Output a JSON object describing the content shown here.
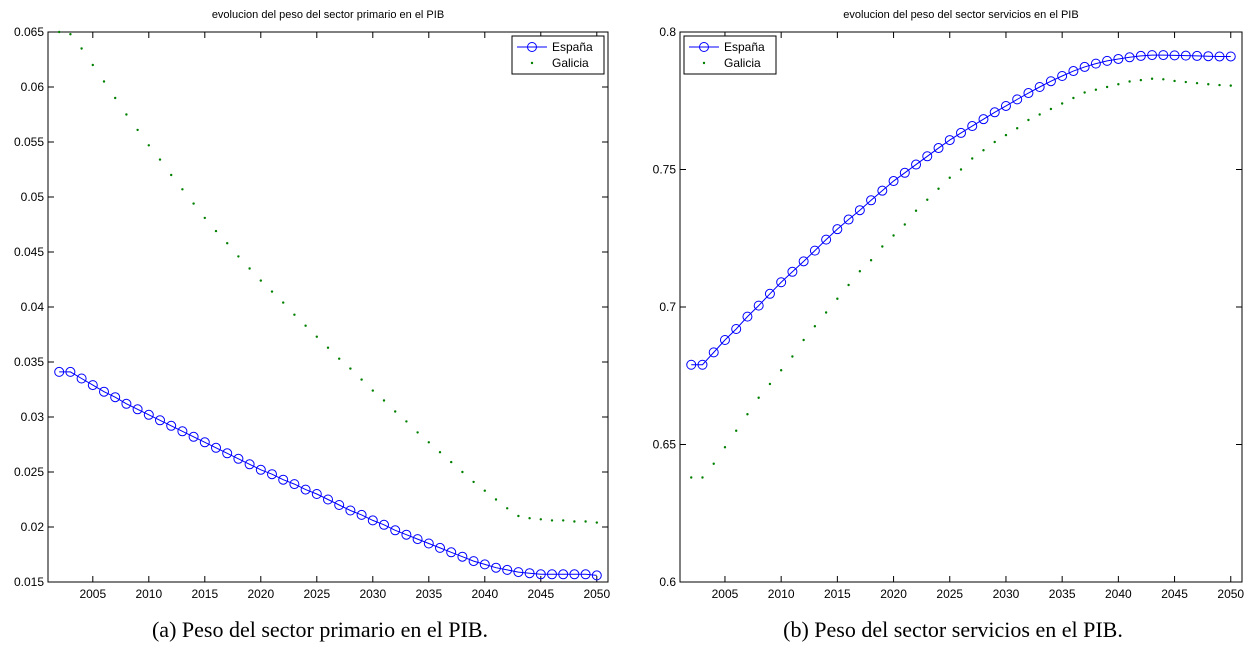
{
  "chart_data": [
    {
      "type": "line",
      "title": "evolucion del peso del sector primario en el PIB",
      "caption": "(a) Peso del sector primario en el PIB.",
      "x": [
        2002,
        2003,
        2004,
        2005,
        2006,
        2007,
        2008,
        2009,
        2010,
        2011,
        2012,
        2013,
        2014,
        2015,
        2016,
        2017,
        2018,
        2019,
        2020,
        2021,
        2022,
        2023,
        2024,
        2025,
        2026,
        2027,
        2028,
        2029,
        2030,
        2031,
        2032,
        2033,
        2034,
        2035,
        2036,
        2037,
        2038,
        2039,
        2040,
        2041,
        2042,
        2043,
        2044,
        2045,
        2046,
        2047,
        2048,
        2049,
        2050
      ],
      "xlim": [
        2001,
        2051
      ],
      "xticks": [
        2005,
        2010,
        2015,
        2020,
        2025,
        2030,
        2035,
        2040,
        2045,
        2050
      ],
      "ylim": [
        0.015,
        0.065
      ],
      "yticks": [
        0.015,
        0.02,
        0.025,
        0.03,
        0.035,
        0.04,
        0.045,
        0.05,
        0.055,
        0.06,
        0.065
      ],
      "legend": "upper right",
      "series": [
        {
          "name": "España",
          "color": "#0000ff",
          "style": "line-circle",
          "values": [
            0.0341,
            0.0341,
            0.0335,
            0.0329,
            0.0323,
            0.0318,
            0.0312,
            0.0307,
            0.0302,
            0.0297,
            0.0292,
            0.0287,
            0.0282,
            0.0277,
            0.0272,
            0.0267,
            0.0262,
            0.0257,
            0.0252,
            0.0248,
            0.0243,
            0.0239,
            0.0234,
            0.023,
            0.0225,
            0.022,
            0.0215,
            0.0211,
            0.0206,
            0.0202,
            0.0197,
            0.0193,
            0.0189,
            0.0185,
            0.0181,
            0.0177,
            0.0173,
            0.0169,
            0.0166,
            0.0163,
            0.0161,
            0.0159,
            0.0158,
            0.0157,
            0.0157,
            0.0157,
            0.0157,
            0.0157,
            0.0156
          ]
        },
        {
          "name": "Galicia",
          "color": "#008000",
          "style": "dots",
          "values": [
            0.065,
            0.0648,
            0.0635,
            0.062,
            0.0605,
            0.059,
            0.0575,
            0.0561,
            0.0547,
            0.0534,
            0.052,
            0.0507,
            0.0494,
            0.0481,
            0.0469,
            0.0458,
            0.0446,
            0.0435,
            0.0424,
            0.0414,
            0.0404,
            0.0393,
            0.0383,
            0.0373,
            0.0363,
            0.0353,
            0.0344,
            0.0334,
            0.0324,
            0.0315,
            0.0305,
            0.0296,
            0.0286,
            0.0277,
            0.0268,
            0.0259,
            0.025,
            0.0241,
            0.0233,
            0.0225,
            0.0217,
            0.021,
            0.0208,
            0.0207,
            0.0206,
            0.0206,
            0.0205,
            0.0205,
            0.0204
          ]
        }
      ]
    },
    {
      "type": "line",
      "title": "evolucion del peso del sector servicios en el PIB",
      "caption": "(b) Peso del sector servicios en el PIB.",
      "x": [
        2002,
        2003,
        2004,
        2005,
        2006,
        2007,
        2008,
        2009,
        2010,
        2011,
        2012,
        2013,
        2014,
        2015,
        2016,
        2017,
        2018,
        2019,
        2020,
        2021,
        2022,
        2023,
        2024,
        2025,
        2026,
        2027,
        2028,
        2029,
        2030,
        2031,
        2032,
        2033,
        2034,
        2035,
        2036,
        2037,
        2038,
        2039,
        2040,
        2041,
        2042,
        2043,
        2044,
        2045,
        2046,
        2047,
        2048,
        2049,
        2050
      ],
      "xlim": [
        2001,
        2051
      ],
      "xticks": [
        2005,
        2010,
        2015,
        2020,
        2025,
        2030,
        2035,
        2040,
        2045,
        2050
      ],
      "ylim": [
        0.6,
        0.8
      ],
      "yticks": [
        0.6,
        0.65,
        0.7,
        0.75,
        0.8
      ],
      "legend": "upper left",
      "series": [
        {
          "name": "España",
          "color": "#0000ff",
          "style": "line-circle",
          "values": [
            0.679,
            0.679,
            0.6835,
            0.688,
            0.692,
            0.6965,
            0.7005,
            0.7048,
            0.709,
            0.7128,
            0.7166,
            0.7205,
            0.7245,
            0.7283,
            0.7318,
            0.7352,
            0.7388,
            0.7423,
            0.7458,
            0.7488,
            0.7518,
            0.7548,
            0.7578,
            0.7607,
            0.7633,
            0.7658,
            0.7683,
            0.7708,
            0.7731,
            0.7755,
            0.7778,
            0.78,
            0.7821,
            0.784,
            0.7858,
            0.7873,
            0.7885,
            0.7895,
            0.7902,
            0.7908,
            0.7913,
            0.7916,
            0.7916,
            0.7915,
            0.7914,
            0.7913,
            0.7912,
            0.7911,
            0.7911
          ]
        },
        {
          "name": "Galicia",
          "color": "#008000",
          "style": "dots",
          "values": [
            0.638,
            0.638,
            0.643,
            0.649,
            0.655,
            0.661,
            0.667,
            0.672,
            0.677,
            0.682,
            0.688,
            0.693,
            0.698,
            0.703,
            0.708,
            0.713,
            0.717,
            0.722,
            0.726,
            0.73,
            0.735,
            0.739,
            0.743,
            0.747,
            0.75,
            0.754,
            0.757,
            0.76,
            0.7625,
            0.765,
            0.768,
            0.77,
            0.772,
            0.774,
            0.776,
            0.778,
            0.779,
            0.78,
            0.781,
            0.782,
            0.7825,
            0.783,
            0.7828,
            0.7822,
            0.7818,
            0.7814,
            0.781,
            0.7807,
            0.7805
          ]
        }
      ]
    }
  ]
}
